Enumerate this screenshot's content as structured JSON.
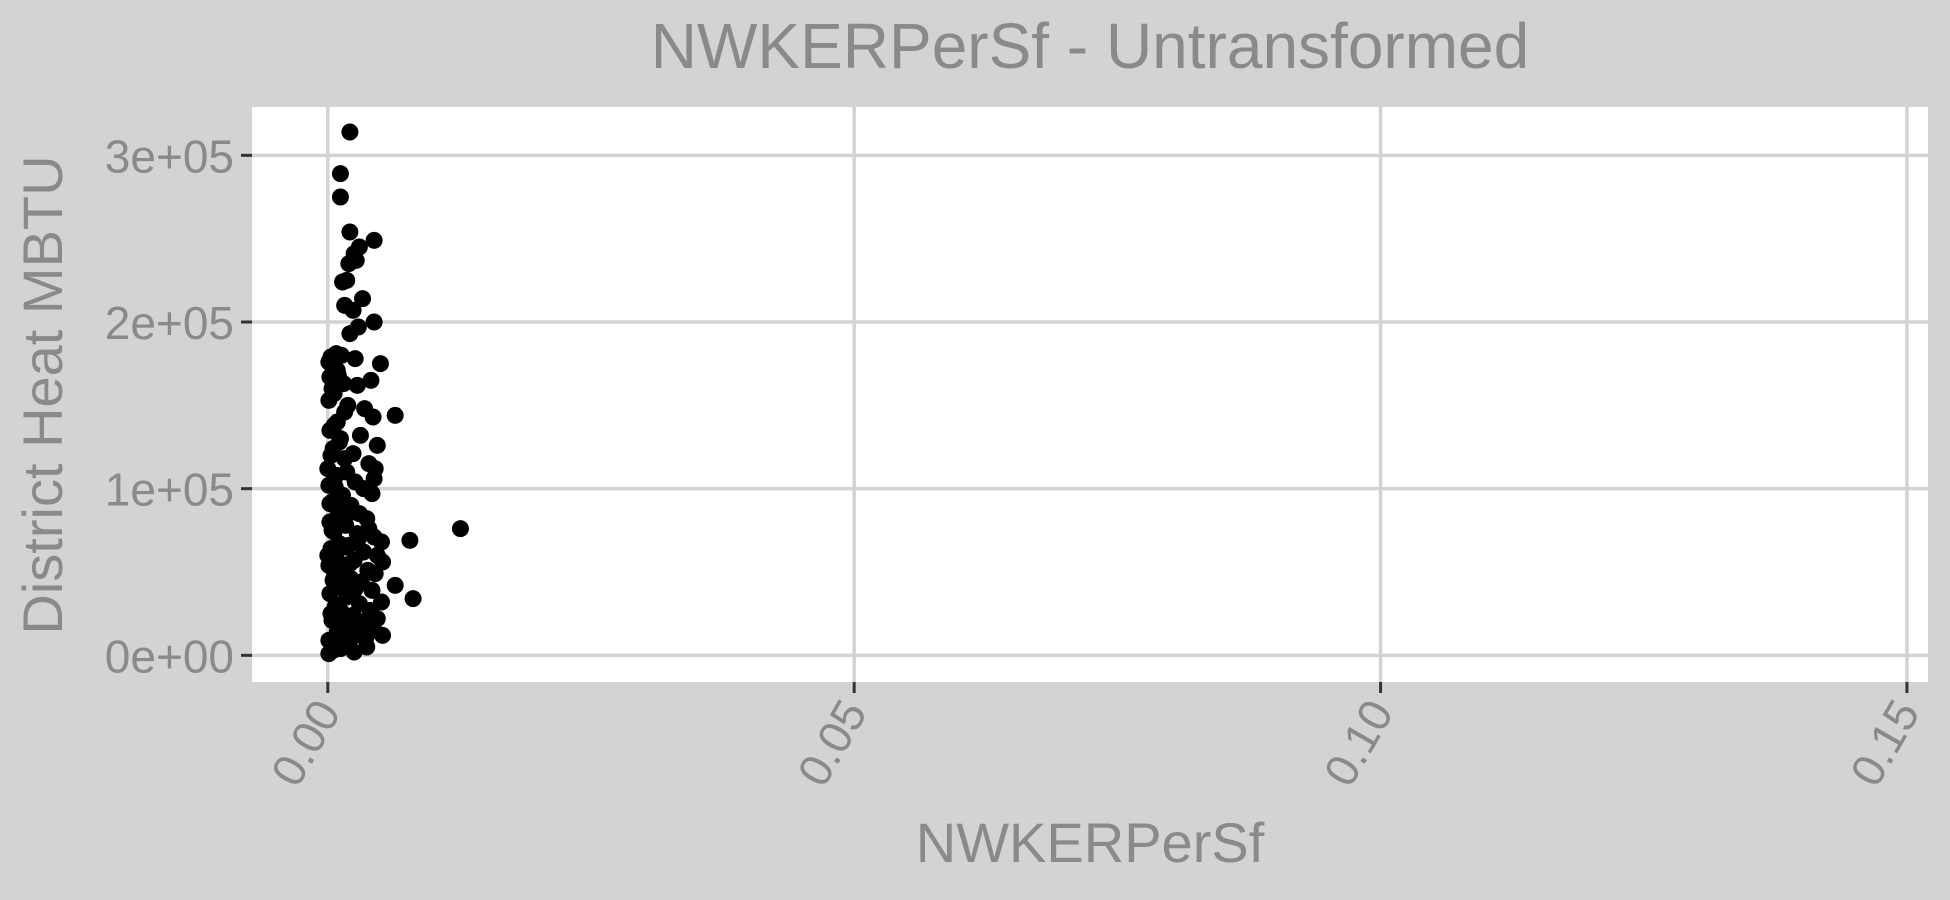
{
  "chart_data": {
    "type": "scatter",
    "title": "NWKERPerSf - Untransformed",
    "xlabel": "NWKERPerSf",
    "ylabel": "District Heat MBTU",
    "xlim": [
      -0.0072,
      0.152
    ],
    "ylim": [
      -16000,
      329000
    ],
    "x_ticks": [
      0.0,
      0.05,
      0.1,
      0.15
    ],
    "x_tick_labels": [
      "0.00",
      "0.05",
      "0.10",
      "0.15"
    ],
    "y_ticks": [
      0,
      100000,
      200000,
      300000
    ],
    "y_tick_labels": [
      "0e+00",
      "1e+05",
      "2e+05",
      "3e+05"
    ],
    "grid": true,
    "colors": {
      "background": "#d3d3d3",
      "panel": "#ffffff",
      "grid": "#d3d3d3",
      "points": "#000000",
      "text": "#8a8a8a"
    },
    "points": [
      [
        0.0021,
        314000
      ],
      [
        0.0012,
        289000
      ],
      [
        0.0012,
        275000
      ],
      [
        0.0021,
        254000
      ],
      [
        0.0044,
        249000
      ],
      [
        0.003,
        245000
      ],
      [
        0.0025,
        241000
      ],
      [
        0.0027,
        237000
      ],
      [
        0.002,
        235000
      ],
      [
        0.0018,
        225000
      ],
      [
        0.0014,
        224000
      ],
      [
        0.0033,
        214000
      ],
      [
        0.0016,
        210000
      ],
      [
        0.0024,
        207000
      ],
      [
        0.0044,
        200000
      ],
      [
        0.0029,
        197000
      ],
      [
        0.0021,
        193000
      ],
      [
        0.0008,
        181000
      ],
      [
        0.0003,
        179000
      ],
      [
        0.0026,
        178000
      ],
      [
        0.005,
        175000
      ],
      [
        0.0005,
        172000
      ],
      [
        0.001,
        168000
      ],
      [
        0.0002,
        167000
      ],
      [
        0.0041,
        165000
      ],
      [
        0.0015,
        163000
      ],
      [
        0.0028,
        162000
      ],
      [
        0.0006,
        157000
      ],
      [
        0.0001,
        153000
      ],
      [
        0.0019,
        150000
      ],
      [
        0.0035,
        148000
      ],
      [
        0.0064,
        144000
      ],
      [
        0.0043,
        143000
      ],
      [
        0.0009,
        140000
      ],
      [
        0.0002,
        135000
      ],
      [
        0.0031,
        132000
      ],
      [
        0.0012,
        130000
      ],
      [
        0.0047,
        126000
      ],
      [
        0.0005,
        124000
      ],
      [
        0.0024,
        121000
      ],
      [
        0.0016,
        118000
      ],
      [
        0.0039,
        115000
      ],
      [
        0.0,
        112000
      ],
      [
        0.0045,
        112000
      ],
      [
        0.0008,
        108000
      ],
      [
        0.0044,
        106000
      ],
      [
        0.0026,
        104000
      ],
      [
        0.0001,
        102000
      ],
      [
        0.0034,
        100000
      ],
      [
        0.0042,
        97000
      ],
      [
        0.0013,
        95000
      ],
      [
        0.0004,
        92000
      ],
      [
        0.0022,
        90000
      ],
      [
        0.0009,
        88000
      ],
      [
        0.003,
        85000
      ],
      [
        0.0037,
        82000
      ],
      [
        0.0002,
        80000
      ],
      [
        0.0017,
        78000
      ],
      [
        0.0126,
        76000
      ],
      [
        0.0039,
        76000
      ],
      [
        0.0006,
        74000
      ],
      [
        0.0028,
        73000
      ],
      [
        0.0044,
        71000
      ],
      [
        0.0078,
        69000
      ],
      [
        0.0051,
        68000
      ],
      [
        0.0011,
        67000
      ],
      [
        0.002,
        66000
      ],
      [
        0.0003,
        64000
      ],
      [
        0.0034,
        62000
      ],
      [
        0.0047,
        60000
      ],
      [
        0.0008,
        58000
      ],
      [
        0.0025,
        57000
      ],
      [
        0.0052,
        56000
      ],
      [
        0.0001,
        54000
      ],
      [
        0.0015,
        53000
      ],
      [
        0.0038,
        51000
      ],
      [
        0.0045,
        49000
      ],
      [
        0.0006,
        47000
      ],
      [
        0.0022,
        46000
      ],
      [
        0.0032,
        44000
      ],
      [
        0.0064,
        42000
      ],
      [
        0.0011,
        41000
      ],
      [
        0.0042,
        39000
      ],
      [
        0.0002,
        37000
      ],
      [
        0.0019,
        36000
      ],
      [
        0.0081,
        34000
      ],
      [
        0.0051,
        32000
      ],
      [
        0.003,
        31000
      ],
      [
        0.0007,
        29000
      ],
      [
        0.004,
        27000
      ],
      [
        0.0013,
        26000
      ],
      [
        0.0024,
        24000
      ],
      [
        0.0047,
        22000
      ],
      [
        0.0004,
        21000
      ],
      [
        0.0034,
        19000
      ],
      [
        0.0016,
        17000
      ],
      [
        0.0052,
        12000
      ],
      [
        0.0044,
        15000
      ],
      [
        0.0009,
        14000
      ],
      [
        0.0027,
        12000
      ],
      [
        0.0036,
        10000
      ],
      [
        0.0001,
        9000
      ],
      [
        0.0019,
        7000
      ],
      [
        0.0037,
        5000
      ],
      [
        0.0012,
        4000
      ],
      [
        0.0025,
        2000
      ],
      [
        0.0001,
        1000
      ],
      [
        0.0005,
        3000
      ],
      [
        0.001,
        6000
      ],
      [
        0.0015,
        11000
      ],
      [
        0.002,
        16000
      ],
      [
        0.0031,
        20000
      ],
      [
        0.0003,
        25000
      ],
      [
        0.0008,
        30000
      ],
      [
        0.0018,
        35000
      ],
      [
        0.0026,
        40000
      ],
      [
        0.0005,
        45000
      ],
      [
        0.0013,
        50000
      ],
      [
        0.0021,
        55000
      ],
      [
        0.0,
        60000
      ],
      [
        0.0017,
        65000
      ],
      [
        0.0029,
        70000
      ],
      [
        0.0004,
        75000
      ],
      [
        0.001,
        81000
      ],
      [
        0.0023,
        86000
      ],
      [
        0.0002,
        91000
      ],
      [
        0.0014,
        96000
      ],
      [
        0.0007,
        101000
      ],
      [
        0.0018,
        110000
      ],
      [
        0.0003,
        120000
      ],
      [
        0.0011,
        128000
      ],
      [
        0.0006,
        138000
      ],
      [
        0.0016,
        146000
      ],
      [
        0.0004,
        160000
      ],
      [
        0.0009,
        171000
      ],
      [
        0.0001,
        176000
      ],
      [
        0.0013,
        180000
      ]
    ]
  }
}
